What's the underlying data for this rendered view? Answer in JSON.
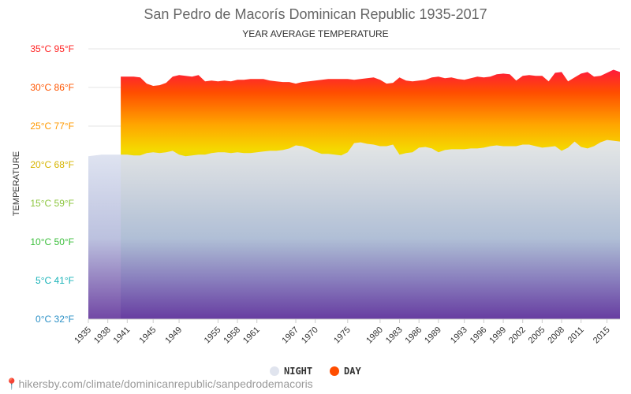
{
  "chart_data": {
    "type": "area",
    "title": "San Pedro de Macorís Dominican Republic 1935-2017",
    "subtitle": "YEAR AVERAGE TEMPERATURE",
    "ylabel": "TEMPERATURE",
    "ylim": [
      0,
      35
    ],
    "y_ticks": [
      {
        "value": 0,
        "label": "0°C 32°F",
        "color": "#2b90c6"
      },
      {
        "value": 5,
        "label": "5°C 41°F",
        "color": "#19b3b8"
      },
      {
        "value": 10,
        "label": "10°C 50°F",
        "color": "#3cbf3c"
      },
      {
        "value": 15,
        "label": "15°C 59°F",
        "color": "#8cc63f"
      },
      {
        "value": 20,
        "label": "20°C 68°F",
        "color": "#d6b400"
      },
      {
        "value": 25,
        "label": "25°C 77°F",
        "color": "#ff9900"
      },
      {
        "value": 30,
        "label": "30°C 86°F",
        "color": "#ff5500"
      },
      {
        "value": 35,
        "label": "35°C 95°F",
        "color": "#ff2222"
      }
    ],
    "x_ticks": [
      1935,
      1938,
      1941,
      1945,
      1949,
      1955,
      1958,
      1961,
      1967,
      1970,
      1975,
      1980,
      1983,
      1986,
      1989,
      1993,
      1996,
      1999,
      2002,
      2005,
      2008,
      2011,
      2015
    ],
    "xlim": [
      1935,
      2017
    ],
    "grid": true,
    "legend_position": "bottom",
    "series": [
      {
        "name": "NIGHT",
        "color": "#e0e4ee",
        "x": [
          1935,
          1936,
          1937,
          1938,
          1939,
          1940,
          1941,
          1942,
          1943,
          1944,
          1945,
          1946,
          1947,
          1948,
          1949,
          1950,
          1951,
          1952,
          1953,
          1954,
          1955,
          1956,
          1957,
          1958,
          1959,
          1960,
          1961,
          1962,
          1963,
          1964,
          1965,
          1966,
          1967,
          1968,
          1969,
          1970,
          1971,
          1972,
          1973,
          1974,
          1975,
          1976,
          1977,
          1978,
          1979,
          1980,
          1981,
          1982,
          1983,
          1984,
          1985,
          1986,
          1987,
          1988,
          1989,
          1990,
          1991,
          1992,
          1993,
          1994,
          1995,
          1996,
          1997,
          1998,
          1999,
          2000,
          2001,
          2002,
          2003,
          2004,
          2005,
          2006,
          2007,
          2008,
          2009,
          2010,
          2011,
          2012,
          2013,
          2014,
          2015,
          2016,
          2017
        ],
        "values": [
          21.1,
          21.2,
          21.3,
          21.3,
          21.3,
          21.3,
          21.3,
          21.2,
          21.2,
          21.5,
          21.6,
          21.5,
          21.6,
          21.8,
          21.3,
          21.1,
          21.2,
          21.3,
          21.3,
          21.5,
          21.6,
          21.6,
          21.5,
          21.6,
          21.5,
          21.5,
          21.6,
          21.7,
          21.8,
          21.8,
          21.9,
          22.1,
          22.5,
          22.4,
          22.1,
          21.7,
          21.4,
          21.4,
          21.3,
          21.2,
          21.6,
          22.8,
          22.9,
          22.7,
          22.6,
          22.4,
          22.4,
          22.6,
          21.3,
          21.5,
          21.6,
          22.2,
          22.3,
          22.1,
          21.6,
          21.9,
          22.0,
          22.0,
          22.0,
          22.1,
          22.1,
          22.2,
          22.4,
          22.5,
          22.4,
          22.4,
          22.4,
          22.6,
          22.6,
          22.4,
          22.2,
          22.3,
          22.4,
          21.8,
          22.2,
          23.0,
          22.3,
          22.1,
          22.4,
          22.9,
          23.2,
          23.1,
          23.0
        ]
      },
      {
        "name": "DAY",
        "color": "#ff4d00",
        "x": [
          1940,
          1941,
          1942,
          1943,
          1944,
          1945,
          1946,
          1947,
          1948,
          1949,
          1950,
          1951,
          1952,
          1953,
          1954,
          1955,
          1956,
          1957,
          1958,
          1959,
          1960,
          1961,
          1962,
          1963,
          1964,
          1965,
          1966,
          1967,
          1968,
          1969,
          1970,
          1971,
          1972,
          1973,
          1974,
          1975,
          1976,
          1977,
          1978,
          1979,
          1980,
          1981,
          1982,
          1983,
          1984,
          1985,
          1986,
          1987,
          1988,
          1989,
          1990,
          1991,
          1992,
          1993,
          1994,
          1995,
          1996,
          1997,
          1998,
          1999,
          2000,
          2001,
          2002,
          2003,
          2004,
          2005,
          2006,
          2007,
          2008,
          2009,
          2010,
          2011,
          2012,
          2013,
          2014,
          2015,
          2016,
          2017
        ],
        "values": [
          31.4,
          31.4,
          31.4,
          31.3,
          30.5,
          30.2,
          30.3,
          30.6,
          31.4,
          31.6,
          31.5,
          31.4,
          31.6,
          30.8,
          30.9,
          30.8,
          30.9,
          30.8,
          31.0,
          31.0,
          31.1,
          31.1,
          31.1,
          30.9,
          30.8,
          30.7,
          30.7,
          30.5,
          30.7,
          30.8,
          30.9,
          31.0,
          31.1,
          31.1,
          31.1,
          31.1,
          31.0,
          31.1,
          31.2,
          31.3,
          31.0,
          30.5,
          30.6,
          31.3,
          30.9,
          30.8,
          30.9,
          31.0,
          31.3,
          31.4,
          31.2,
          31.3,
          31.1,
          31.0,
          31.2,
          31.4,
          31.3,
          31.4,
          31.7,
          31.8,
          31.7,
          30.9,
          31.5,
          31.6,
          31.5,
          31.5,
          30.8,
          31.9,
          32.0,
          30.8,
          31.3,
          31.8,
          32.0,
          31.4,
          31.5,
          31.9,
          32.3,
          32.0
        ]
      }
    ]
  },
  "source_text": "hikersby.com/climate/dominicanrepublic/sanpedrodemacoris"
}
